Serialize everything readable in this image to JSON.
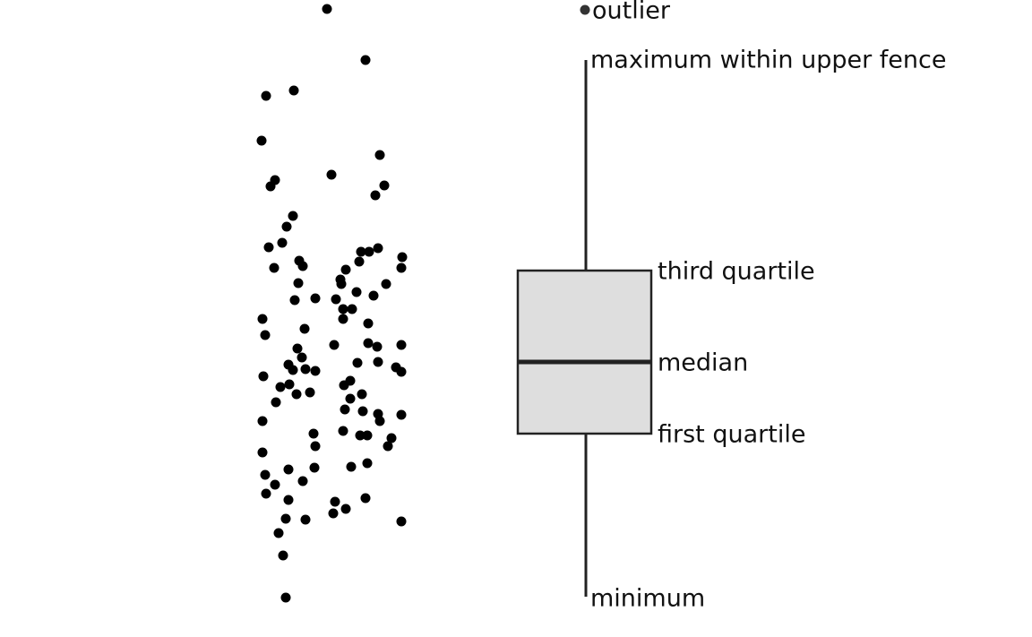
{
  "labels": {
    "outlier": "outlier",
    "maximum": "maximum within upper fence",
    "third_quartile": "third quartile",
    "median": "median",
    "first_quartile": "first quartile",
    "minimum": "minimum"
  }
}
